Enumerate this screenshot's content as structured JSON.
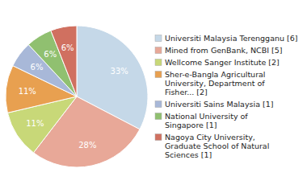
{
  "chart_data": {
    "type": "pie",
    "categories": [
      "Universiti Malaysia Terengganu [6]",
      "Mined from GenBank, NCBI [5]",
      "Wellcome Sanger Institute [2]",
      "Sher-e-Bangla Agricultural\nUniversity, Department of\nFisher... [2]",
      "Universiti Sains Malaysia [1]",
      "National University of\nSingapore [1]",
      "Nagoya City University,\nGraduate School of Natural\nSciences [1]"
    ],
    "values": [
      33,
      28,
      11,
      11,
      6,
      6,
      6
    ],
    "value_labels": [
      "33%",
      "28%",
      "11%",
      "11%",
      "6%",
      "6%",
      "6%"
    ],
    "colors": [
      "#c5d8e8",
      "#e8a898",
      "#c8d878",
      "#e8a050",
      "#a8b8d8",
      "#90c070",
      "#d07060"
    ],
    "data_labels": true,
    "legend": "right"
  }
}
